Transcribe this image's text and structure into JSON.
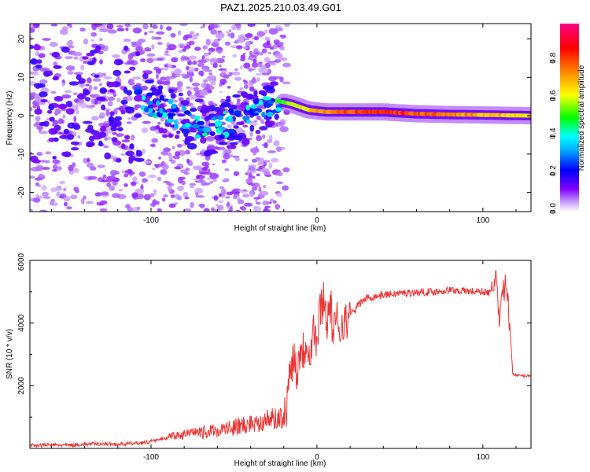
{
  "figure": {
    "title": "PAZ1.2025.210.03.49.G01"
  },
  "colors": {
    "snr_line": "#ee3333",
    "axis": "#000000",
    "background": "#ffffff"
  },
  "chart_data": [
    {
      "type": "heatmap",
      "title": "PAZ1.2025.210.03.49.G01",
      "xlabel": "Height of straight line (km)",
      "ylabel": "Frequency (Hz)",
      "xlim": [
        -173,
        129
      ],
      "ylim": [
        -25,
        24
      ],
      "xticks": [
        -100,
        0,
        100
      ],
      "yticks": [
        -20,
        -10,
        0,
        10,
        20
      ],
      "grid": false,
      "colorbar": {
        "label": "Normalized spectral amplitude",
        "range": [
          0,
          1
        ],
        "ticks": [
          0.0,
          0.2,
          0.4,
          0.6,
          0.8
        ],
        "colormap": [
          "#ffffff",
          "#8000ff",
          "#0000ff",
          "#00ffff",
          "#00ff00",
          "#ffff00",
          "#ff8000",
          "#ff0000",
          "#ff0088"
        ]
      },
      "ridge": {
        "x": [
          -105,
          -95,
          -85,
          -75,
          -65,
          -55,
          -45,
          -35,
          -25,
          -15,
          -5,
          5,
          20,
          40,
          60,
          80,
          100,
          129
        ],
        "frequency": [
          4,
          2.5,
          0,
          -2,
          -4,
          -2,
          -1,
          1.5,
          4,
          3,
          1.5,
          1,
          1,
          1,
          0.5,
          0.3,
          0.2,
          0
        ],
        "amplitude": [
          0.3,
          0.35,
          0.3,
          0.3,
          0.3,
          0.35,
          0.3,
          0.3,
          0.45,
          0.6,
          0.65,
          0.72,
          0.8,
          0.85,
          0.8,
          0.75,
          0.7,
          0.65
        ]
      }
    },
    {
      "type": "line",
      "xlabel": "Height of straight line (km)",
      "ylabel": "SNR (10 * v/v)",
      "xlim": [
        -173,
        129
      ],
      "ylim": [
        0,
        6000
      ],
      "xticks": [
        -100,
        0,
        100
      ],
      "yticks": [
        2000,
        4000,
        6000
      ],
      "grid": false,
      "series": [
        {
          "x": [
            -173,
            -160,
            -150,
            -140,
            -130,
            -120,
            -110,
            -100,
            -90,
            -80,
            -70,
            -60,
            -50,
            -40,
            -30,
            -25,
            -20,
            -18,
            -16,
            -14,
            -12,
            -10,
            -8,
            -6,
            -4,
            -2,
            0,
            2,
            4,
            6,
            8,
            10,
            12,
            14,
            16,
            18,
            20,
            22,
            25,
            30,
            35,
            40,
            50,
            60,
            70,
            80,
            90,
            100,
            105,
            108,
            110,
            112,
            115,
            118,
            120,
            125,
            129
          ],
          "y": [
            100,
            110,
            100,
            130,
            150,
            130,
            160,
            200,
            300,
            350,
            380,
            430,
            500,
            600,
            700,
            700,
            800,
            1500,
            2600,
            3000,
            2400,
            3300,
            3100,
            3500,
            3000,
            3900,
            3300,
            4500,
            4800,
            4100,
            4600,
            3600,
            4100,
            3800,
            4200,
            3900,
            4400,
            4300,
            4600,
            4800,
            4850,
            4900,
            4950,
            4980,
            5000,
            5050,
            5020,
            5000,
            4950,
            5600,
            3700,
            5200,
            5000,
            2400,
            2330,
            2320,
            2330
          ]
        }
      ]
    }
  ]
}
